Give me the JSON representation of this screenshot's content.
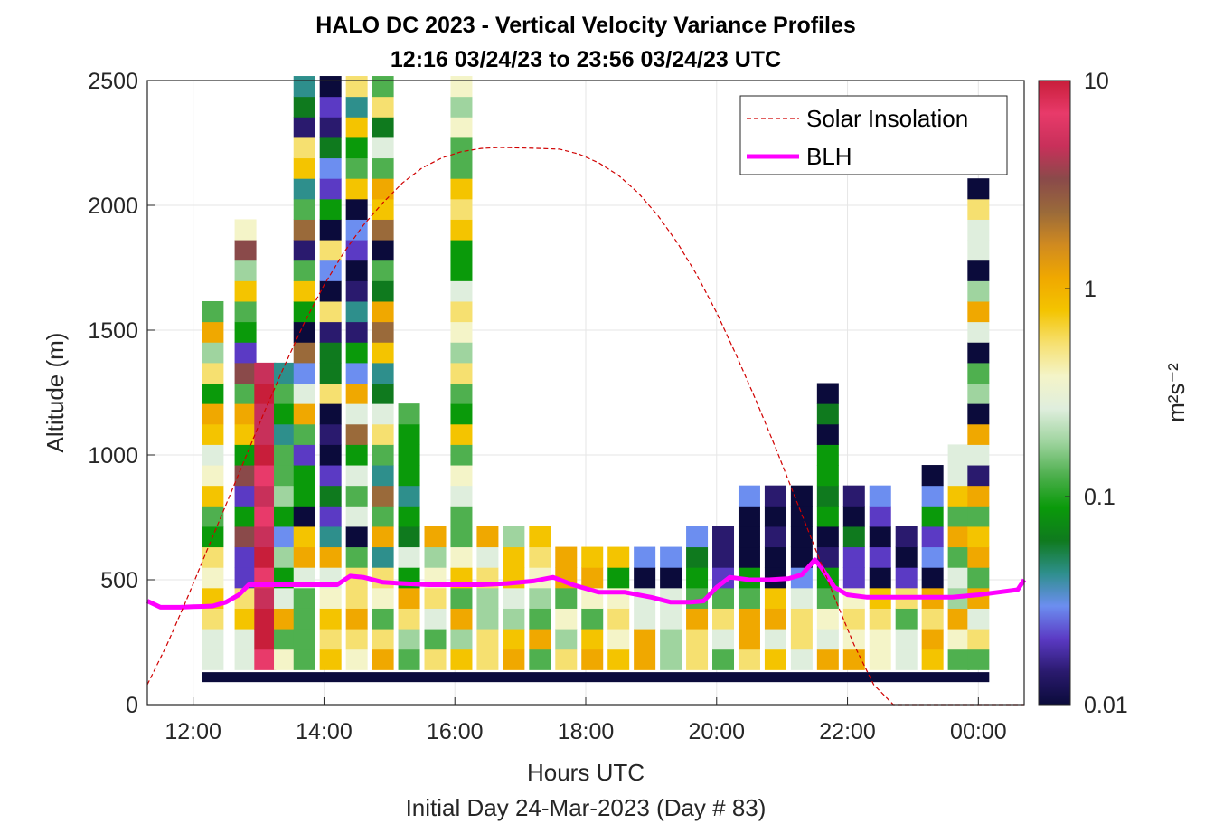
{
  "chart_data": {
    "type": "heatmap",
    "title": "HALO DC 2023 - Vertical Velocity Variance Profiles",
    "subtitle": "12:16 03/24/23 to 23:56 03/24/23  UTC",
    "xlabel": "Hours UTC",
    "xlabel2": "Initial Day 24-Mar-2023 (Day # 83)",
    "ylabel": "Altitude (m)",
    "colorbar_label": "m²s⁻²",
    "xlim": [
      11.3,
      24.7
    ],
    "ylim": [
      0,
      2500
    ],
    "x_ticks": [
      {
        "value": 12,
        "label": "12:00"
      },
      {
        "value": 14,
        "label": "14:00"
      },
      {
        "value": 16,
        "label": "16:00"
      },
      {
        "value": 18,
        "label": "18:00"
      },
      {
        "value": 20,
        "label": "20:00"
      },
      {
        "value": 22,
        "label": "22:00"
      },
      {
        "value": 24,
        "label": "00:00"
      }
    ],
    "y_ticks": [
      {
        "value": 0,
        "label": "0"
      },
      {
        "value": 500,
        "label": "500"
      },
      {
        "value": 1000,
        "label": "1000"
      },
      {
        "value": 1500,
        "label": "1500"
      },
      {
        "value": 2000,
        "label": "2000"
      },
      {
        "value": 2500,
        "label": "2500"
      }
    ],
    "colorbar": {
      "scale": "log",
      "range": [
        0.01,
        10
      ],
      "ticks": [
        {
          "value": 0.01,
          "label": "0.01"
        },
        {
          "value": 0.1,
          "label": "0.1"
        },
        {
          "value": 1,
          "label": "1"
        },
        {
          "value": 10,
          "label": "10"
        }
      ],
      "colors": [
        "#0b0b3b",
        "#2a1a6e",
        "#5b3ac4",
        "#6c8ef0",
        "#2e8f8c",
        "#0f7a1e",
        "#0a9a0a",
        "#4fb04f",
        "#9fd49f",
        "#dfeedd",
        "#f4f4c8",
        "#f6e070",
        "#f4c400",
        "#f0a800",
        "#d08a20",
        "#9a6a3a",
        "#8a4a4a",
        "#c8305a",
        "#e83a6a",
        "#c81e3a"
      ]
    },
    "legend": {
      "placement": "top-right",
      "entries": [
        {
          "label": "Solar Insolation",
          "style": "dashed",
          "color": "#d00000"
        },
        {
          "label": "BLH",
          "style": "solid",
          "color": "#ff00ff"
        }
      ]
    },
    "series": [
      {
        "name": "BLH",
        "color": "#ff00ff",
        "x": [
          11.3,
          11.5,
          11.8,
          12.0,
          12.15,
          12.3,
          12.5,
          12.7,
          12.85,
          13.0,
          13.2,
          13.5,
          13.8,
          14.0,
          14.2,
          14.4,
          14.6,
          14.9,
          15.2,
          15.6,
          16.0,
          16.4,
          16.8,
          17.2,
          17.5,
          17.8,
          18.2,
          18.6,
          19.0,
          19.3,
          19.6,
          19.8,
          20.0,
          20.2,
          20.5,
          20.8,
          21.1,
          21.3,
          21.5,
          21.6,
          21.8,
          22.0,
          22.3,
          22.6,
          22.9,
          23.2,
          23.6,
          24.0,
          24.3,
          24.6,
          24.7
        ],
        "y": [
          415,
          390,
          390,
          392,
          393,
          395,
          410,
          440,
          480,
          480,
          480,
          480,
          480,
          480,
          480,
          515,
          510,
          490,
          485,
          480,
          480,
          480,
          485,
          495,
          510,
          480,
          450,
          450,
          430,
          410,
          410,
          415,
          470,
          510,
          500,
          500,
          505,
          520,
          580,
          550,
          470,
          440,
          430,
          430,
          430,
          430,
          430,
          440,
          450,
          460,
          500
        ]
      },
      {
        "name": "Solar Insolation",
        "color": "#d00000",
        "note_units": "altitude-axis scaled",
        "x": [
          11.3,
          11.6,
          11.9,
          12.2,
          12.5,
          12.8,
          13.1,
          13.4,
          13.7,
          14.0,
          14.3,
          14.6,
          14.9,
          15.2,
          15.5,
          15.8,
          16.1,
          16.4,
          16.7,
          17.0,
          17.3,
          17.6,
          17.9,
          18.2,
          18.5,
          18.8,
          19.1,
          19.4,
          19.7,
          20.0,
          20.3,
          20.6,
          20.9,
          21.2,
          21.5,
          21.8,
          22.1,
          22.4,
          22.7,
          23.0,
          23.3,
          23.5,
          23.8,
          24.2,
          24.7
        ],
        "y": [
          80,
          240,
          420,
          610,
          800,
          990,
          1180,
          1360,
          1530,
          1680,
          1810,
          1920,
          2010,
          2090,
          2150,
          2190,
          2215,
          2228,
          2232,
          2230,
          2228,
          2225,
          2205,
          2170,
          2120,
          2050,
          1960,
          1850,
          1720,
          1570,
          1400,
          1220,
          1030,
          830,
          630,
          430,
          240,
          80,
          0,
          0,
          0,
          0,
          0,
          0,
          0
        ]
      }
    ],
    "heatmap_columns": [
      {
        "t": 12.3,
        "top": 1580,
        "pattern": "green-yellow"
      },
      {
        "t": 12.8,
        "top": 1920,
        "pattern": "brown-green"
      },
      {
        "t": 13.1,
        "top": 1300,
        "pattern": "red"
      },
      {
        "t": 13.4,
        "top": 1300,
        "pattern": "green"
      },
      {
        "t": 13.7,
        "top": 2500,
        "pattern": "mixed-high"
      },
      {
        "t": 14.1,
        "top": 2500,
        "pattern": "mixed-high"
      },
      {
        "t": 14.5,
        "top": 2500,
        "pattern": "mixed-high"
      },
      {
        "t": 14.9,
        "top": 2500,
        "pattern": "mixed-high"
      },
      {
        "t": 15.3,
        "top": 1200,
        "pattern": "green"
      },
      {
        "t": 15.7,
        "top": 650,
        "pattern": "green-yellow"
      },
      {
        "t": 16.1,
        "top": 2500,
        "pattern": "green-yellow"
      },
      {
        "t": 16.5,
        "top": 650,
        "pattern": "yellow"
      },
      {
        "t": 16.9,
        "top": 650,
        "pattern": "yellow"
      },
      {
        "t": 17.3,
        "top": 650,
        "pattern": "yellow"
      },
      {
        "t": 17.7,
        "top": 600,
        "pattern": "yellow"
      },
      {
        "t": 18.1,
        "top": 600,
        "pattern": "yellow"
      },
      {
        "t": 18.5,
        "top": 600,
        "pattern": "green-yellow"
      },
      {
        "t": 18.9,
        "top": 600,
        "pattern": "dark-low"
      },
      {
        "t": 19.3,
        "top": 600,
        "pattern": "dark-low"
      },
      {
        "t": 19.7,
        "top": 700,
        "pattern": "dark-low"
      },
      {
        "t": 20.1,
        "top": 700,
        "pattern": "dark-low"
      },
      {
        "t": 20.5,
        "top": 850,
        "pattern": "dark-low"
      },
      {
        "t": 20.9,
        "top": 850,
        "pattern": "dark-low"
      },
      {
        "t": 21.3,
        "top": 850,
        "pattern": "dark-low"
      },
      {
        "t": 21.7,
        "top": 1250,
        "pattern": "dark-low"
      },
      {
        "t": 22.1,
        "top": 850,
        "pattern": "dark-low"
      },
      {
        "t": 22.5,
        "top": 800,
        "pattern": "dark-low"
      },
      {
        "t": 22.9,
        "top": 700,
        "pattern": "dark-low"
      },
      {
        "t": 23.3,
        "top": 950,
        "pattern": "dark-low"
      },
      {
        "t": 23.7,
        "top": 1000,
        "pattern": "mixed"
      },
      {
        "t": 24.0,
        "top": 2050,
        "pattern": "mixed"
      }
    ],
    "grid": true
  }
}
